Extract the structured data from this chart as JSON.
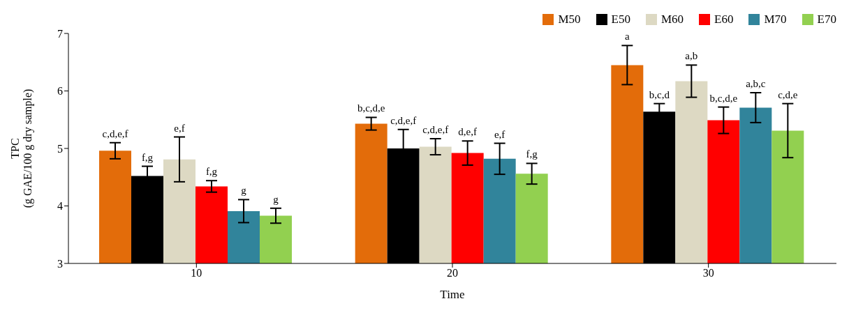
{
  "chart_data": {
    "type": "bar",
    "xlabel": "Time",
    "ylabel": "TPC\n(g GAE/100 g dry sample)",
    "categories": [
      "10",
      "20",
      "30"
    ],
    "series": [
      {
        "name": "M50",
        "color": "#e36c0a",
        "values": [
          4.96,
          5.43,
          6.45
        ],
        "errors": [
          0.14,
          0.11,
          0.34
        ],
        "value_labels": [
          "c,d,e,f",
          "b,c,d,e",
          "a"
        ]
      },
      {
        "name": "E50",
        "color": "#000000",
        "values": [
          4.52,
          5.0,
          5.64
        ],
        "errors": [
          0.17,
          0.33,
          0.14
        ],
        "value_labels": [
          "f,g",
          "c,d,e,f",
          "b,c,d"
        ]
      },
      {
        "name": "M60",
        "color": "#ddd9c3",
        "values": [
          4.81,
          5.03,
          6.17
        ],
        "errors": [
          0.39,
          0.14,
          0.28
        ],
        "value_labels": [
          "e,f",
          "c,d,e,f",
          "a,b"
        ]
      },
      {
        "name": "E60",
        "color": "#ff0000",
        "values": [
          4.34,
          4.92,
          5.49
        ],
        "errors": [
          0.1,
          0.21,
          0.23
        ],
        "value_labels": [
          "f,g",
          "d,e,f",
          "b,c,d,e"
        ]
      },
      {
        "name": "M70",
        "color": "#31849b",
        "values": [
          3.91,
          4.82,
          5.71
        ],
        "errors": [
          0.2,
          0.27,
          0.26
        ],
        "value_labels": [
          "g",
          "e,f",
          "a,b,c"
        ]
      },
      {
        "name": "E70",
        "color": "#92d050",
        "values": [
          3.83,
          4.56,
          5.31
        ],
        "errors": [
          0.13,
          0.18,
          0.47
        ],
        "value_labels": [
          "g",
          "f,g",
          "c,d,e"
        ]
      }
    ],
    "ylim": [
      3,
      7
    ],
    "yticks": [
      3,
      4,
      5,
      6,
      7
    ],
    "grid": false,
    "legend": "top right"
  }
}
